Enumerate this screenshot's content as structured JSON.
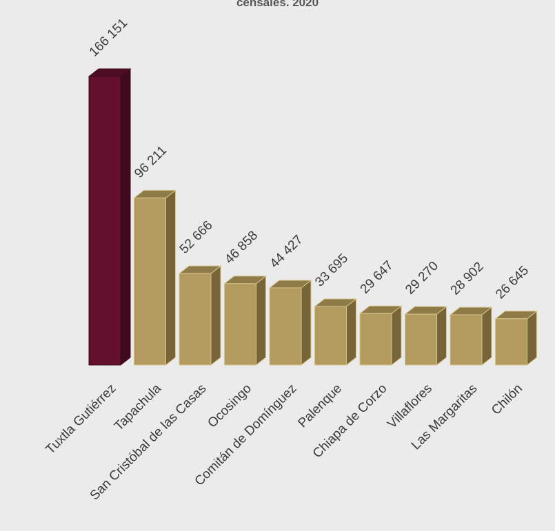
{
  "chart_data": {
    "type": "bar",
    "title": "censales. 2020",
    "categories": [
      "Tuxtla Gutiérrez",
      "Tapachula",
      "San Cristóbal de las Casas",
      "Ocosingo",
      "Comitán de Domínguez",
      "Palenque",
      "Chiapa de Corzo",
      "Villaflores",
      "Las Margaritas",
      "Chilón"
    ],
    "values": [
      166151,
      96211,
      52666,
      46858,
      44427,
      33695,
      29647,
      29270,
      28902,
      26645
    ],
    "value_labels": [
      "166 151",
      "96 211",
      "52 666",
      "46 858",
      "44 427",
      "33 695",
      "29 647",
      "29 270",
      "28 902",
      "26 645"
    ],
    "xlabel": "",
    "ylabel": "",
    "ylim": [
      0,
      166151
    ],
    "grid": false,
    "legend": "none",
    "colors": {
      "highlight": "#62102d",
      "highlight_side": "#3f0a1d",
      "highlight_top": "#4e0d24",
      "base": "#b39b60",
      "base_side": "#776439",
      "base_top": "#8f7b48",
      "edge": "#d8c48c"
    }
  }
}
